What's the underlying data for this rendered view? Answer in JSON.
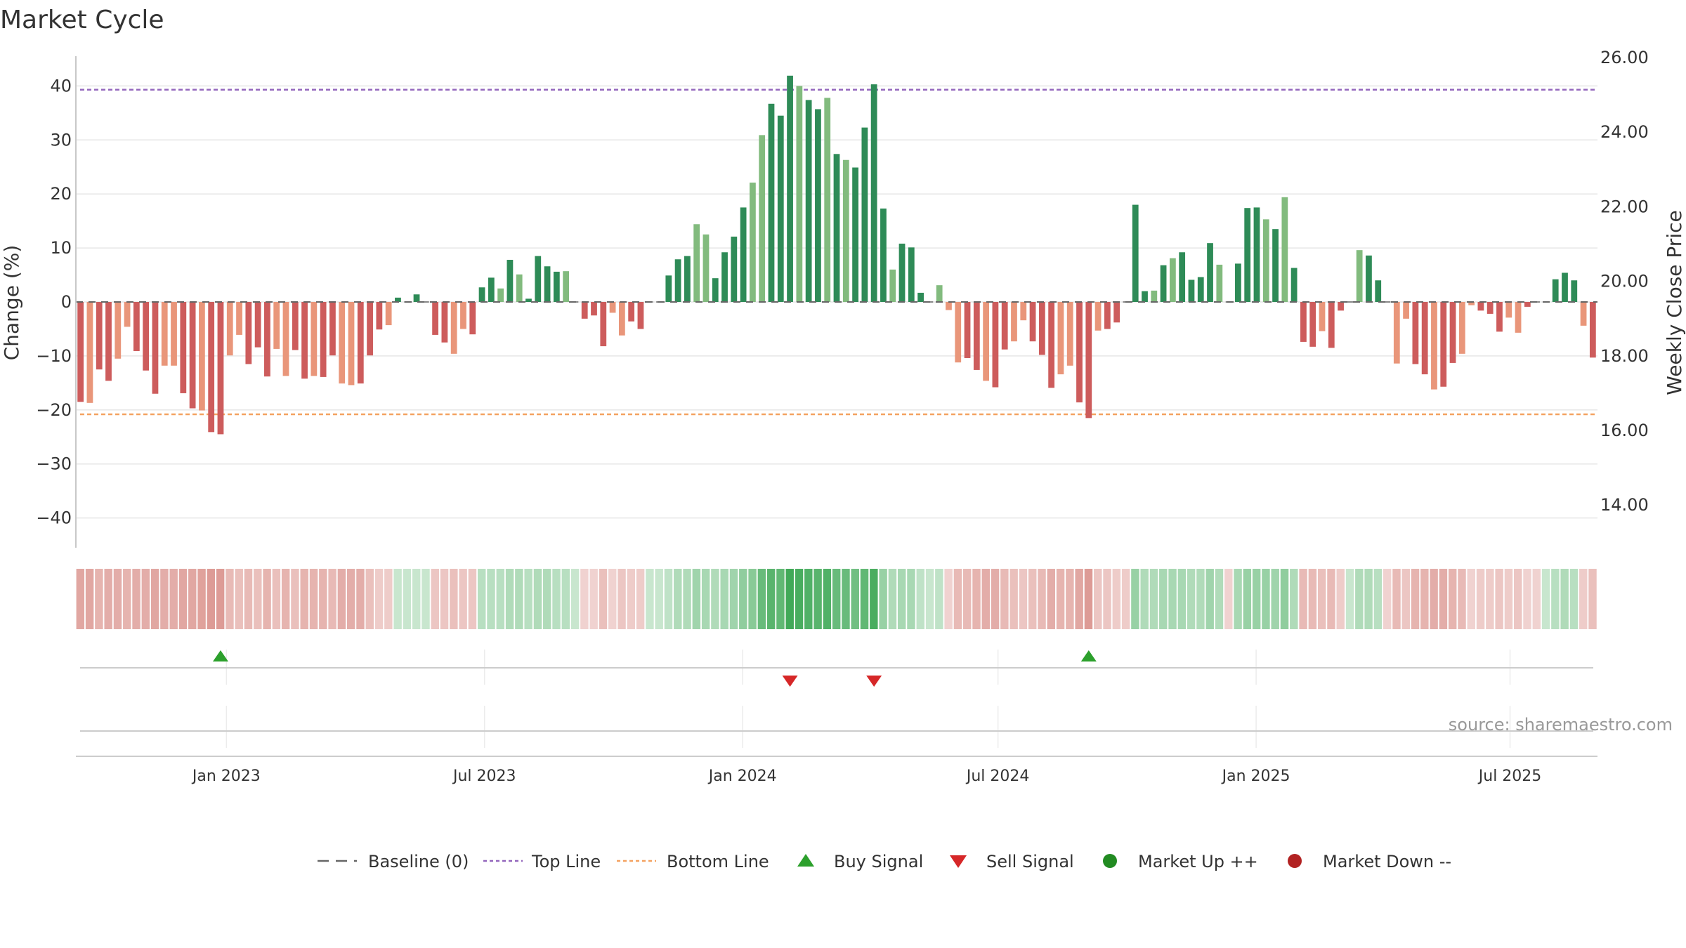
{
  "chart_data": {
    "type": "bar",
    "title": "Market Cycle",
    "ylabel": "Change (%)",
    "y2label": "Weekly Close Price",
    "ylim": [
      -45,
      46
    ],
    "y_ticks": [
      40,
      30,
      20,
      10,
      0,
      -10,
      -20,
      -30,
      -40
    ],
    "y_tick_labels": [
      "40",
      "30",
      "20",
      "10",
      "0",
      "−10",
      "−20",
      "−30",
      "−40"
    ],
    "y2lim": [
      12.9,
      26.4
    ],
    "y2_ticks": [
      26,
      24,
      22,
      20,
      18,
      16,
      14
    ],
    "y2_tick_labels": [
      "26.00",
      "24.00",
      "22.00",
      "20.00",
      "18.00",
      "16.00",
      "14.00"
    ],
    "top_line": 39.3,
    "bottom_line": -20.8,
    "baseline": 0,
    "x_ticks": [
      "2022-12-29",
      "2023-07-01",
      "2024-01-01",
      "2024-07-01",
      "2025-01-01",
      "2025-07-01"
    ],
    "x_tick_labels": [
      "Jan 2023",
      "Jul 2023",
      "Jan 2024",
      "Jul 2024",
      "Jan 2025",
      "Jul 2025"
    ],
    "weeks": {
      "first_week": "2022-09-16",
      "last_week": "2025-08-29",
      "interval_days": 7
    },
    "values": [
      -18.5,
      -18.7,
      -12.5,
      -14.6,
      -10.5,
      -4.6,
      -9.1,
      -12.7,
      -17.0,
      -11.8,
      -11.8,
      -16.9,
      -19.7,
      -20.1,
      -24.1,
      -24.5,
      -9.9,
      -6.1,
      -11.5,
      -8.4,
      -13.8,
      -8.7,
      -13.7,
      -8.9,
      -14.2,
      -13.7,
      -13.9,
      -9.9,
      -15.1,
      -15.4,
      -15.1,
      -9.9,
      -5.1,
      -4.3,
      0.8,
      0.3,
      1.4,
      -0.2,
      -6.1,
      -7.5,
      -9.6,
      -5.0,
      -6.0,
      2.7,
      4.5,
      2.5,
      7.8,
      5.1,
      0.6,
      8.5,
      6.6,
      5.6,
      5.7,
      -0.1,
      -3.1,
      -2.5,
      -8.2,
      -2.0,
      -6.2,
      -3.6,
      -5.0,
      0.0,
      0.0,
      4.9,
      7.9,
      8.5,
      14.4,
      12.5,
      4.4,
      9.2,
      12.1,
      17.5,
      22.1,
      30.9,
      36.7,
      34.5,
      41.9,
      40.0,
      37.4,
      35.7,
      37.8,
      27.4,
      26.3,
      24.9,
      32.3,
      40.3,
      17.3,
      6.0,
      10.8,
      10.1,
      1.7,
      0.1,
      3.1,
      -1.5,
      -11.2,
      -10.4,
      -12.6,
      -14.6,
      -15.8,
      -8.8,
      -7.3,
      -3.4,
      -7.3,
      -9.8,
      -15.9,
      -13.4,
      -11.8,
      -18.6,
      -21.5,
      -5.3,
      -5.0,
      -3.8,
      0.0,
      18.0,
      2.0,
      2.1,
      6.8,
      8.1,
      9.2,
      4.1,
      4.6,
      10.9,
      6.9,
      -0.3,
      7.1,
      17.4,
      17.5,
      15.3,
      13.5,
      19.4,
      6.3,
      -7.4,
      -8.3,
      -5.4,
      -8.5,
      -1.6,
      0.0,
      9.6,
      8.6,
      4.0,
      0.0,
      -11.4,
      -3.1,
      -11.5,
      -13.4,
      -16.2,
      -15.7,
      -11.3,
      -9.6,
      -0.6,
      -1.6,
      -2.2,
      -5.5,
      -2.9,
      -5.7,
      -0.9,
      -0.3,
      0.0,
      4.2,
      5.4,
      4.0,
      -4.4,
      -10.3
    ],
    "heat": [
      -0.5,
      -0.5,
      -0.4,
      -0.45,
      -0.45,
      -0.4,
      -0.45,
      -0.45,
      -0.5,
      -0.45,
      -0.45,
      -0.5,
      -0.5,
      -0.55,
      -0.6,
      -0.6,
      -0.35,
      -0.3,
      -0.35,
      -0.3,
      -0.4,
      -0.3,
      -0.4,
      -0.3,
      -0.4,
      -0.4,
      -0.4,
      -0.35,
      -0.45,
      -0.45,
      -0.45,
      -0.3,
      -0.2,
      -0.2,
      0.15,
      0.15,
      0.15,
      0.15,
      -0.25,
      -0.25,
      -0.3,
      -0.25,
      -0.25,
      0.25,
      0.25,
      0.25,
      0.3,
      0.3,
      0.25,
      0.3,
      0.3,
      0.25,
      0.25,
      0.15,
      -0.15,
      -0.15,
      -0.3,
      -0.15,
      -0.25,
      -0.2,
      -0.2,
      0.15,
      0.15,
      0.2,
      0.3,
      0.3,
      0.4,
      0.35,
      0.3,
      0.35,
      0.4,
      0.5,
      0.55,
      0.75,
      0.85,
      0.8,
      1.0,
      0.95,
      0.9,
      0.85,
      0.9,
      0.75,
      0.75,
      0.7,
      0.8,
      0.95,
      0.45,
      0.3,
      0.35,
      0.35,
      0.2,
      0.15,
      0.2,
      -0.15,
      -0.35,
      -0.35,
      -0.4,
      -0.45,
      -0.45,
      -0.35,
      -0.3,
      -0.25,
      -0.3,
      -0.35,
      -0.45,
      -0.4,
      -0.4,
      -0.5,
      -0.6,
      -0.25,
      -0.25,
      -0.2,
      -0.2,
      0.45,
      0.3,
      0.3,
      0.35,
      0.35,
      0.35,
      0.3,
      0.3,
      0.4,
      0.3,
      -0.15,
      0.35,
      0.45,
      0.45,
      0.45,
      0.4,
      0.5,
      0.3,
      -0.35,
      -0.35,
      -0.3,
      -0.35,
      -0.2,
      0.15,
      0.3,
      0.3,
      0.25,
      -0.15,
      -0.35,
      -0.25,
      -0.4,
      -0.4,
      -0.45,
      -0.45,
      -0.4,
      -0.35,
      -0.15,
      -0.2,
      -0.2,
      -0.25,
      -0.2,
      -0.25,
      -0.15,
      -0.15,
      0.15,
      0.25,
      0.3,
      0.25,
      -0.2,
      -0.3
    ],
    "buy_signals": [
      15,
      108
    ],
    "sell_signals": [
      76,
      85
    ],
    "legend": [
      "Baseline (0)",
      "Top Line",
      "Bottom Line",
      "Buy Signal",
      "Sell Signal",
      "Market Up ++",
      "Market Down --"
    ],
    "legend_placement": "bottom-center",
    "grid": true,
    "source": "source: sharemaestro.com",
    "colors": {
      "strong_up": "#2e8b57",
      "mild_up": "#82bb7e",
      "strong_down": "#cd5c5c",
      "mild_down": "#e9967a",
      "top_line": "#9467bd",
      "bottom_line": "#f4a261",
      "buy": "#2ca02c",
      "sell": "#d62728",
      "market_up": "#228b22",
      "market_down": "#b22222",
      "baseline": "#666666"
    }
  }
}
